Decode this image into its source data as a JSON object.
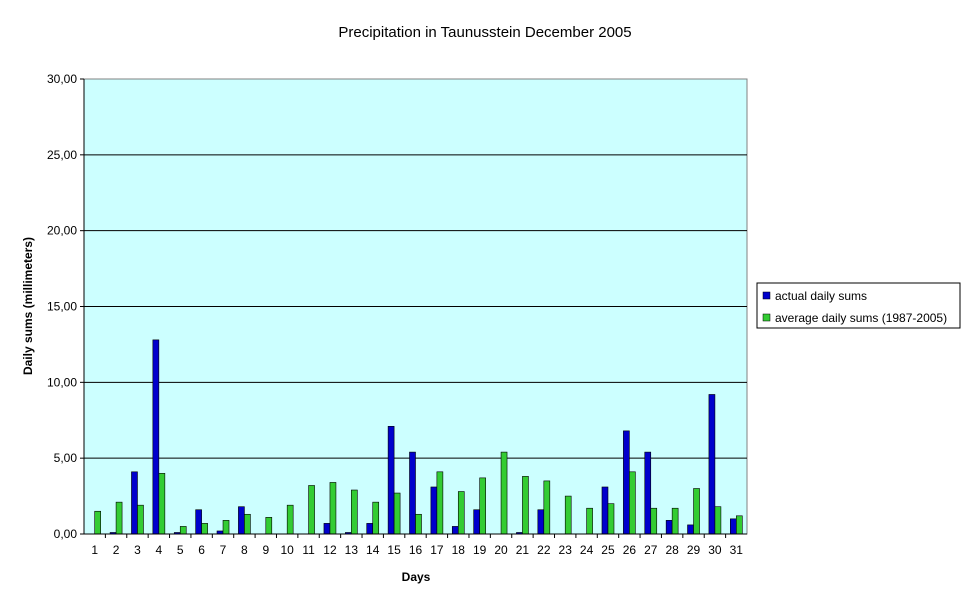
{
  "chart_data": {
    "type": "bar",
    "title": "Precipitation in Taunusstein  December  2005",
    "xlabel": "Days",
    "ylabel": "Daily sums  (millimeters)",
    "ylim": [
      0,
      30
    ],
    "yticks": [
      "0,00",
      "5,00",
      "10,00",
      "15,00",
      "20,00",
      "25,00",
      "30,00"
    ],
    "grid": true,
    "legend_position": "right",
    "categories": [
      "1",
      "2",
      "3",
      "4",
      "5",
      "6",
      "7",
      "8",
      "9",
      "10",
      "11",
      "12",
      "13",
      "14",
      "15",
      "16",
      "17",
      "18",
      "19",
      "20",
      "21",
      "22",
      "23",
      "24",
      "25",
      "26",
      "27",
      "28",
      "29",
      "30",
      "31"
    ],
    "series": [
      {
        "name": "actual daily sums",
        "color": "#0000cc",
        "values": [
          0,
          0.1,
          4.1,
          12.8,
          0.1,
          1.6,
          0.2,
          1.8,
          0,
          0,
          0,
          0.7,
          0.1,
          0.7,
          7.1,
          5.4,
          3.1,
          0.5,
          1.6,
          0,
          0.1,
          1.6,
          0,
          0,
          3.1,
          6.8,
          5.4,
          0.9,
          0.6,
          9.2,
          1.0
        ]
      },
      {
        "name": "average daily sums (1987-2005)",
        "color": "#33cc33",
        "values": [
          1.5,
          2.1,
          1.9,
          4.0,
          0.5,
          0.7,
          0.9,
          1.3,
          1.1,
          1.9,
          3.2,
          3.4,
          2.9,
          2.1,
          2.7,
          1.3,
          4.1,
          2.8,
          3.7,
          5.4,
          3.8,
          3.5,
          2.5,
          1.7,
          2.0,
          4.1,
          1.7,
          1.7,
          3.0,
          1.8,
          1.2
        ]
      }
    ],
    "plot_background": "#ccffff"
  }
}
